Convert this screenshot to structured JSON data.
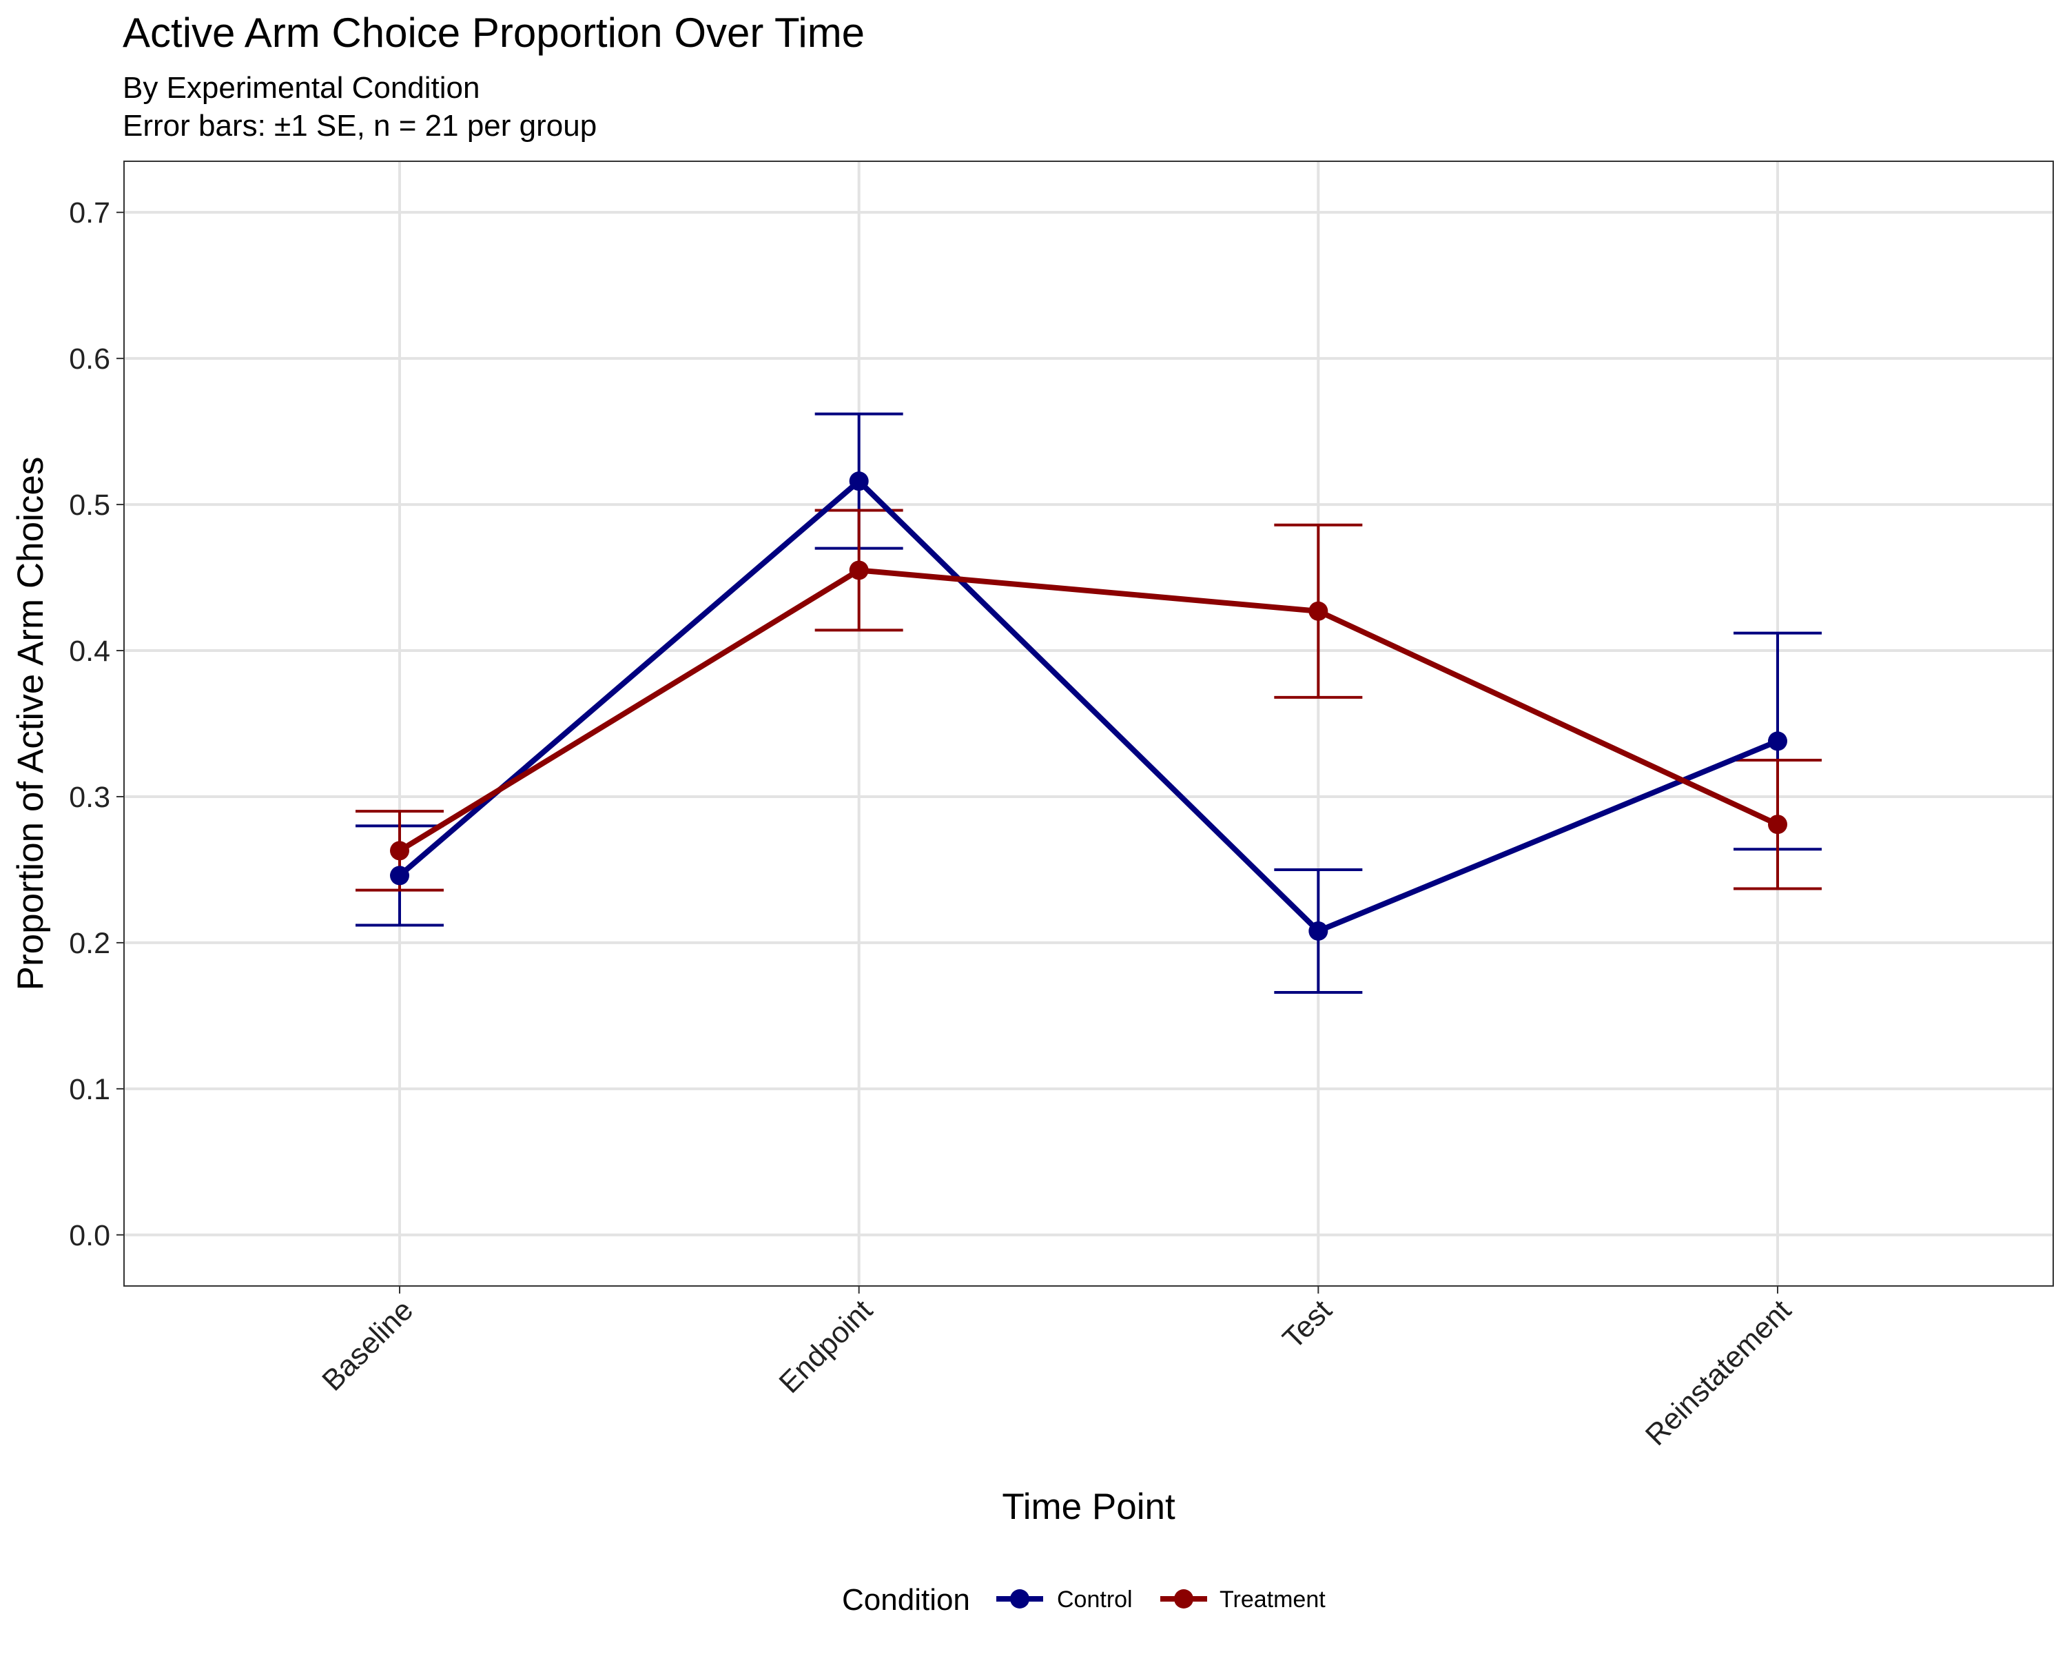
{
  "chart_data": {
    "type": "line",
    "title": "Active Arm Choice Proportion Over Time",
    "subtitle_lines": [
      "By Experimental Condition",
      "Error bars: ±1 SE, n = 21 per group"
    ],
    "xlabel": "Time Point",
    "ylabel": "Proportion of Active Arm Choices",
    "categories": [
      "Baseline",
      "Endpoint",
      "Test",
      "Reinstatement"
    ],
    "ylim": [
      -0.035,
      0.735
    ],
    "yticks": [
      0.0,
      0.1,
      0.2,
      0.3,
      0.4,
      0.5,
      0.6,
      0.7
    ],
    "ytick_labels": [
      "0.0",
      "0.1",
      "0.2",
      "0.3",
      "0.4",
      "0.5",
      "0.6",
      "0.7"
    ],
    "grid": true,
    "legend": {
      "title": "Condition",
      "position": "bottom"
    },
    "series": [
      {
        "name": "Control",
        "color": "#00007F",
        "values": [
          0.246,
          0.516,
          0.208,
          0.338
        ],
        "se": [
          0.034,
          0.046,
          0.042,
          0.074
        ]
      },
      {
        "name": "Treatment",
        "color": "#8B0000",
        "values": [
          0.263,
          0.455,
          0.427,
          0.281
        ],
        "se": [
          0.027,
          0.041,
          0.059,
          0.044
        ]
      }
    ]
  }
}
